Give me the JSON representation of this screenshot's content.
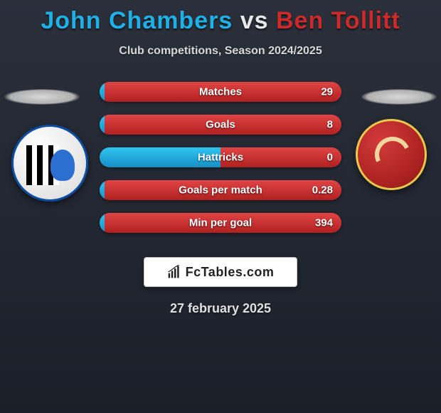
{
  "title": {
    "player1": "John Chambers",
    "vs": "vs",
    "player2": "Ben Tollitt"
  },
  "subtitle": "Club competitions, Season 2024/2025",
  "colors": {
    "player1": "#1fb0e6",
    "player2": "#c92a2a",
    "bar_left_top": "#2fc4f0",
    "bar_left_bottom": "#1790c8",
    "bar_right_top": "#e04444",
    "bar_right_bottom": "#b12020",
    "bg_top": "#2a2f3a",
    "bg_bottom": "#1b1f28"
  },
  "stats": [
    {
      "label": "Matches",
      "value": "29",
      "left_pct": 2,
      "right_pct": 98
    },
    {
      "label": "Goals",
      "value": "8",
      "left_pct": 2,
      "right_pct": 98
    },
    {
      "label": "Hattricks",
      "value": "0",
      "left_pct": 50,
      "right_pct": 50
    },
    {
      "label": "Goals per match",
      "value": "0.28",
      "left_pct": 2,
      "right_pct": 98
    },
    {
      "label": "Min per goal",
      "value": "394",
      "left_pct": 2,
      "right_pct": 98
    }
  ],
  "brand": "FcTables.com",
  "date": "27 february 2025",
  "badges": {
    "left_name": "gillingham-badge",
    "right_name": "morecambe-badge"
  }
}
